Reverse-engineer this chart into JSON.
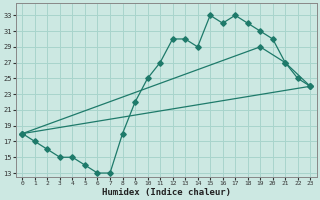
{
  "bg_color": "#cce8e2",
  "grid_color": "#a8d4cc",
  "line_color": "#1e7a6a",
  "xlabel": "Humidex (Indice chaleur)",
  "x_ticks": [
    0,
    1,
    2,
    3,
    4,
    5,
    6,
    7,
    8,
    9,
    10,
    11,
    12,
    13,
    14,
    15,
    16,
    17,
    18,
    19,
    20,
    21,
    22,
    23
  ],
  "y_ticks": [
    13,
    15,
    17,
    19,
    21,
    23,
    25,
    27,
    29,
    31,
    33
  ],
  "xlim": [
    -0.5,
    23.5
  ],
  "ylim": [
    12.5,
    34.5
  ],
  "line1_x": [
    0,
    1,
    2,
    3,
    4,
    5,
    6,
    7,
    8,
    9,
    10,
    11,
    12,
    13,
    14,
    15,
    16,
    17,
    18,
    19,
    20,
    21,
    22,
    23
  ],
  "line1_y": [
    18,
    17,
    16,
    15,
    15,
    14,
    13,
    13,
    18,
    22,
    25,
    27,
    30,
    30,
    29,
    33,
    32,
    33,
    32,
    31,
    30,
    27,
    25,
    24
  ],
  "line2_x": [
    0,
    23
  ],
  "line2_y": [
    18,
    24
  ],
  "line3_x": [
    0,
    19,
    21,
    23
  ],
  "line3_y": [
    18,
    29,
    27,
    24
  ]
}
